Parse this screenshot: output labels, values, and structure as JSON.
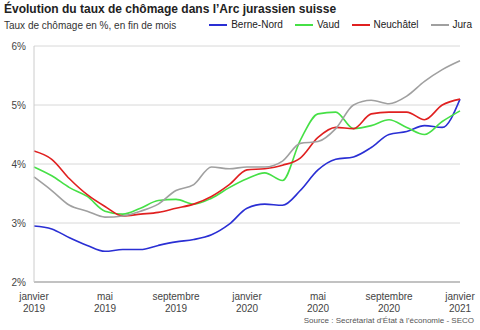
{
  "chart_data": {
    "type": "line",
    "title": "Évolution du taux de chômage dans l’Arc jurassien suisse",
    "subtitle": "Taux de chômage en %, en fin de mois",
    "source": "Source : Secrétariat d’État à l’économie - SECO",
    "categories": [
      "janvier 2019",
      null,
      null,
      null,
      "mai 2019",
      null,
      null,
      null,
      "septembre 2019",
      null,
      null,
      null,
      "janvier 2020",
      null,
      null,
      null,
      "mai 2020",
      null,
      null,
      null,
      "septembre 2020",
      null,
      null,
      null,
      "janvier 2021"
    ],
    "series": [
      {
        "name": "Berne-Nord",
        "color": "#2a2fd4",
        "values": [
          2.95,
          2.9,
          2.75,
          2.62,
          2.52,
          2.55,
          2.55,
          2.62,
          2.68,
          2.72,
          2.8,
          2.98,
          3.25,
          3.32,
          3.3,
          3.55,
          3.9,
          4.08,
          4.12,
          4.28,
          4.5,
          4.55,
          4.65,
          4.62,
          5.1
        ]
      },
      {
        "name": "Vaud",
        "color": "#46e046",
        "values": [
          3.95,
          3.8,
          3.6,
          3.45,
          3.2,
          3.15,
          3.25,
          3.38,
          3.4,
          3.32,
          3.42,
          3.6,
          3.75,
          3.85,
          3.72,
          4.4,
          4.85,
          4.88,
          4.6,
          4.65,
          4.75,
          4.62,
          4.5,
          4.72,
          4.9
        ]
      },
      {
        "name": "Neuchâtel",
        "color": "#e02020",
        "values": [
          4.22,
          4.08,
          3.75,
          3.48,
          3.28,
          3.12,
          3.15,
          3.18,
          3.25,
          3.32,
          3.45,
          3.65,
          3.9,
          3.92,
          3.98,
          4.1,
          4.45,
          4.62,
          4.6,
          4.85,
          4.88,
          4.88,
          4.75,
          5.0,
          5.1
        ]
      },
      {
        "name": "Jura",
        "color": "#a0a0a0",
        "values": [
          3.78,
          3.55,
          3.3,
          3.2,
          3.1,
          3.12,
          3.2,
          3.32,
          3.55,
          3.65,
          3.95,
          3.92,
          3.95,
          3.95,
          4.05,
          4.35,
          4.38,
          4.6,
          5.0,
          5.08,
          5.02,
          5.15,
          5.4,
          5.6,
          5.75
        ]
      }
    ],
    "ylim": [
      2,
      6
    ],
    "yticks": [
      {
        "value": 2,
        "label": "2%"
      },
      {
        "value": 3,
        "label": "3%"
      },
      {
        "value": 4,
        "label": "4%"
      },
      {
        "value": 5,
        "label": "5%"
      },
      {
        "value": 6,
        "label": "6%"
      }
    ],
    "grid": true,
    "legend": "top"
  }
}
